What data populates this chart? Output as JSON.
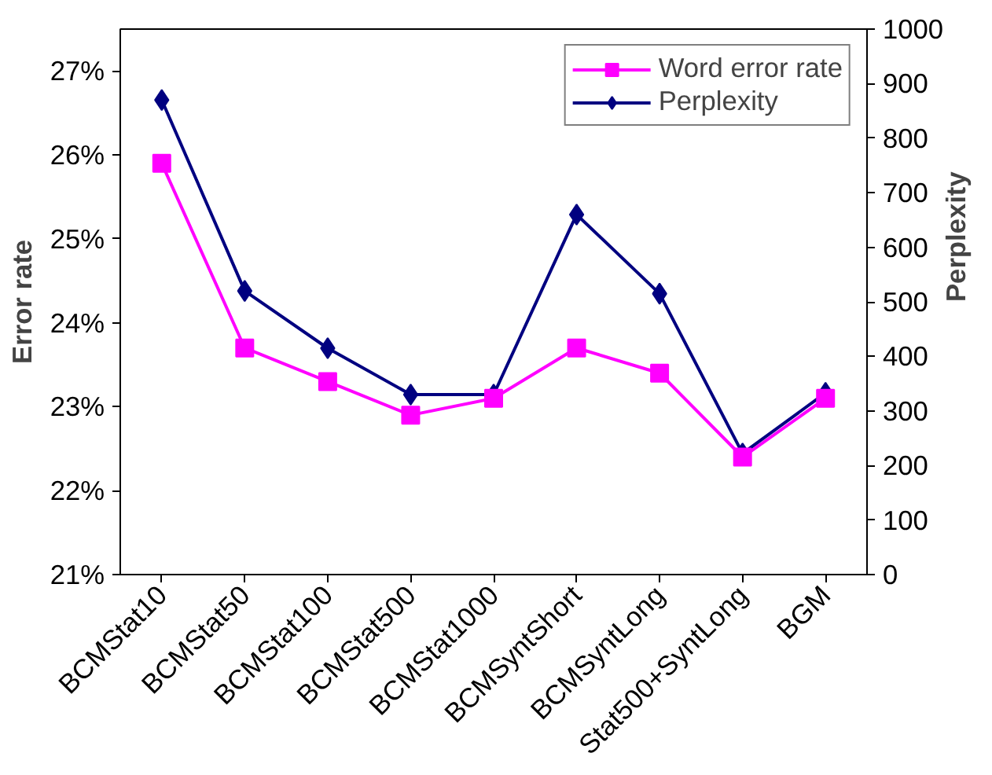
{
  "chart_data": {
    "type": "line",
    "categories": [
      "BCMStat10",
      "BCMStat50",
      "BCMStat100",
      "BCMStat500",
      "BCMStat1000",
      "BCMSyntShort",
      "BCMSyntLong",
      "Stat500+SyntLong",
      "BGM"
    ],
    "ylabel": "Error rate",
    "y2label": "Perplexity",
    "ylim": [
      21,
      27.5
    ],
    "yticks": [
      {
        "value": 21,
        "label": "21%"
      },
      {
        "value": 22,
        "label": "22%"
      },
      {
        "value": 23,
        "label": "23%"
      },
      {
        "value": 24,
        "label": "24%"
      },
      {
        "value": 25,
        "label": "25%"
      },
      {
        "value": 26,
        "label": "26%"
      },
      {
        "value": 27,
        "label": "27%"
      }
    ],
    "y2lim": [
      0,
      1000
    ],
    "y2ticks": [
      0,
      100,
      200,
      300,
      400,
      500,
      600,
      700,
      800,
      900,
      1000
    ],
    "series": [
      {
        "name": "Word error rate",
        "color": "#ff00ff",
        "marker": "square",
        "values": [
          25.9,
          23.7,
          23.3,
          22.9,
          23.1,
          23.7,
          23.4,
          22.4,
          23.1
        ]
      },
      {
        "name": "Perplexity",
        "color": "#000080",
        "marker": "diamond",
        "axis": "y2",
        "values": [
          870,
          520,
          415,
          330,
          330,
          660,
          515,
          222,
          333
        ]
      }
    ],
    "grid": false,
    "legend": "top right"
  }
}
